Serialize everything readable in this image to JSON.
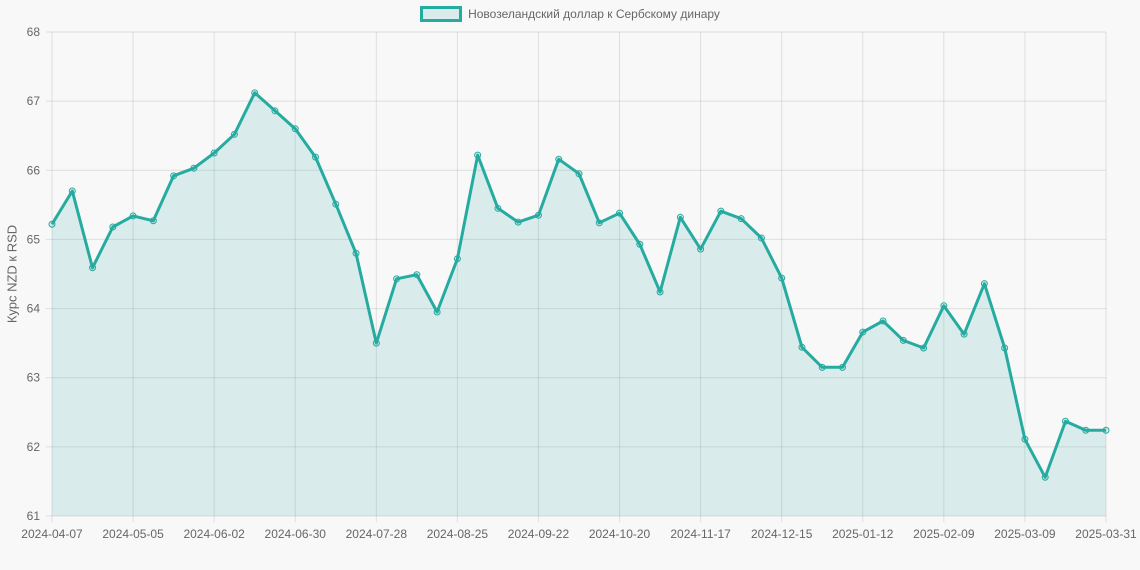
{
  "chart_data": {
    "type": "line",
    "title": "",
    "legend": [
      "Новозеландский доллар к Сербскому динару"
    ],
    "legend_position": "top",
    "xlabel": "",
    "ylabel": "Курс NZD к RSD",
    "ylim": [
      61,
      68
    ],
    "yticks": [
      61,
      62,
      63,
      64,
      65,
      66,
      67,
      68
    ],
    "xticks": [
      "2024-04-07",
      "2024-05-05",
      "2024-06-02",
      "2024-06-30",
      "2024-07-28",
      "2024-08-25",
      "2024-09-22",
      "2024-10-20",
      "2024-11-17",
      "2024-12-15",
      "2025-01-12",
      "2025-02-09",
      "2025-03-09",
      "2025-03-31"
    ],
    "grid": true,
    "colors": {
      "line": "#26aba0",
      "fill": "rgba(38,171,160,0.15)"
    },
    "x": [
      "2024-04-07",
      "2024-04-14",
      "2024-04-21",
      "2024-04-28",
      "2024-05-05",
      "2024-05-12",
      "2024-05-19",
      "2024-05-26",
      "2024-06-02",
      "2024-06-09",
      "2024-06-16",
      "2024-06-23",
      "2024-06-30",
      "2024-07-07",
      "2024-07-14",
      "2024-07-21",
      "2024-07-28",
      "2024-08-04",
      "2024-08-11",
      "2024-08-18",
      "2024-08-25",
      "2024-09-01",
      "2024-09-08",
      "2024-09-15",
      "2024-09-22",
      "2024-09-29",
      "2024-10-06",
      "2024-10-13",
      "2024-10-20",
      "2024-10-27",
      "2024-11-03",
      "2024-11-10",
      "2024-11-17",
      "2024-11-24",
      "2024-12-01",
      "2024-12-08",
      "2024-12-15",
      "2024-12-22",
      "2024-12-29",
      "2025-01-05",
      "2025-01-12",
      "2025-01-19",
      "2025-01-26",
      "2025-02-02",
      "2025-02-09",
      "2025-02-16",
      "2025-02-23",
      "2025-03-02",
      "2025-03-09",
      "2025-03-16",
      "2025-03-23",
      "2025-03-30",
      "2025-03-31"
    ],
    "series": [
      {
        "name": "Новозеландский доллар к Сербскому динару",
        "values": [
          65.22,
          65.7,
          64.59,
          65.18,
          65.34,
          65.27,
          65.92,
          66.03,
          66.25,
          66.52,
          67.12,
          66.86,
          66.6,
          66.19,
          65.51,
          64.8,
          63.5,
          64.43,
          64.49,
          63.95,
          64.72,
          66.22,
          65.45,
          65.25,
          65.35,
          66.16,
          65.95,
          65.24,
          65.38,
          64.93,
          64.24,
          65.32,
          64.86,
          65.41,
          65.3,
          65.02,
          64.44,
          63.44,
          63.15,
          63.15,
          63.66,
          63.82,
          63.54,
          63.43,
          64.04,
          63.63,
          64.36,
          63.43,
          62.11,
          61.56,
          62.37,
          62.24,
          62.24
        ]
      }
    ]
  }
}
